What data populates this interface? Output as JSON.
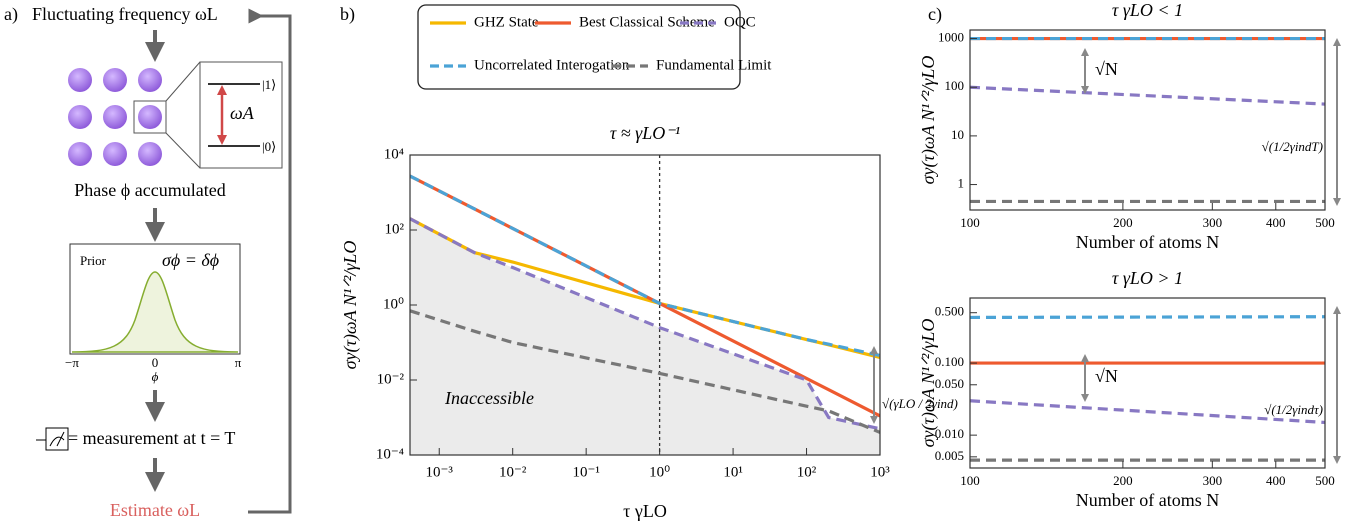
{
  "panel_a": {
    "label": "a)",
    "top_text": "Fluctuating frequency ωL",
    "level_1": "|1⟩",
    "level_0": "|0⟩",
    "transition": "ωA",
    "phase_text": "Phase ϕ accumulated",
    "prior_label": "Prior",
    "prior_width": "σϕ = δϕ",
    "axis_ticks": [
      "−π",
      "0",
      "π"
    ],
    "axis_label": "ϕ",
    "measurement_text": "= measurement at t = T",
    "estimate_text": "Estimate ωL"
  },
  "panel_labels": [
    "b)",
    "c)"
  ],
  "chart_data": [
    {
      "type": "line",
      "title": "τ ≈ γLO⁻¹",
      "x_label": "τ γLO",
      "y_label": "σy(τ)ωA N¹ᐟ²/γLO",
      "log_x": true,
      "log_y": true,
      "legend": "above",
      "xlim": [
        0.0004,
        1000
      ],
      "ylim": [
        0.0001,
        10000
      ],
      "xticks": [
        {
          "value": 0.001,
          "label": "10⁻³"
        },
        {
          "value": 0.01,
          "label": "10⁻²"
        },
        {
          "value": 0.1,
          "label": "10⁻¹"
        },
        {
          "value": 1,
          "label": "10⁰"
        },
        {
          "value": 10,
          "label": "10¹"
        },
        {
          "value": 100,
          "label": "10²"
        },
        {
          "value": 1000,
          "label": "10³"
        }
      ],
      "yticks": [
        {
          "value": 0.0001,
          "label": "10⁻⁴"
        },
        {
          "value": 0.01,
          "label": "10⁻²"
        },
        {
          "value": 1,
          "label": "10⁰"
        },
        {
          "value": 100,
          "label": "10²"
        },
        {
          "value": 10000,
          "label": "10⁴"
        }
      ],
      "x": [
        0.0004,
        0.003,
        0.01,
        1,
        100,
        200,
        1000
      ],
      "vline": 1,
      "shade_series": 2,
      "shade_color": "#ebebeb",
      "region_label": "Inaccessible",
      "bracket_label": "√(γLO / 2γind)",
      "series": [
        {
          "name": "GHZ State",
          "color": "#f5b800",
          "dash": "solid",
          "values": [
            200,
            25,
            14,
            1.1,
            0.12,
            0.087,
            0.04
          ]
        },
        {
          "name": "Best Classical Scheme",
          "color": "#ee5a2f",
          "dash": "solid",
          "values": [
            2750,
            367,
            110,
            1.1,
            0.011,
            0.0055,
            0.0011
          ]
        },
        {
          "name": "OQC",
          "color": "#8878c3",
          "dash": "dashed",
          "values": [
            200,
            25,
            10,
            0.25,
            0.01,
            0.001,
            0.0005
          ]
        },
        {
          "name": "Uncorrelated Interogation",
          "color": "#4ba3d6",
          "dash": "dashed",
          "values": [
            2750,
            367,
            110,
            1.1,
            0.12,
            0.09,
            0.045
          ]
        },
        {
          "name": "Fundamental Limit",
          "color": "#777777",
          "dash": "dashed",
          "values": [
            0.7,
            0.2,
            0.1,
            0.015,
            0.002,
            0.0015,
            0.0004
          ]
        }
      ]
    },
    {
      "type": "line",
      "title": "τ γLO < 1",
      "x_label": "Number of atoms N",
      "y_label": "σy(τ)ωA N¹ᐟ²/γLO",
      "log_x": true,
      "log_y": true,
      "xlim": [
        100,
        500
      ],
      "ylim": [
        0.3,
        1500
      ],
      "xticks": [
        100,
        200,
        300,
        400,
        500
      ],
      "yticks": [
        1,
        10,
        100,
        1000
      ],
      "x": [
        100,
        500
      ],
      "gap_label": "√N",
      "bracket_label": "√(1/2γindT)",
      "series": [
        {
          "color": "#ee5a2f",
          "dash": "solid",
          "values": [
            1000,
            1000
          ]
        },
        {
          "color": "#4ba3d6",
          "dash": "dashed",
          "values": [
            1000,
            1000
          ]
        },
        {
          "color": "#8878c3",
          "dash": "dashed",
          "values": [
            100,
            45
          ]
        },
        {
          "color": "#777777",
          "dash": "dashed",
          "values": [
            0.45,
            0.45
          ]
        }
      ]
    },
    {
      "type": "line",
      "title": "τ γLO > 1",
      "x_label": "Number of atoms N",
      "y_label": "σy(τ)ωA N¹ᐟ²/γLO",
      "log_x": true,
      "log_y": true,
      "xlim": [
        100,
        500
      ],
      "ylim": [
        0.0035,
        0.8
      ],
      "xticks": [
        100,
        200,
        300,
        400,
        500
      ],
      "yticks": [
        {
          "value": 0.005,
          "label": "0.005"
        },
        {
          "value": 0.01,
          "label": "0.010"
        },
        {
          "value": 0.05,
          "label": "0.050"
        },
        {
          "value": 0.1,
          "label": "0.100"
        },
        {
          "value": 0.5,
          "label": "0.500"
        }
      ],
      "x": [
        100,
        500
      ],
      "gap_label": "√N",
      "bracket_label": "√(1/2γindτ)",
      "series": [
        {
          "color": "#4ba3d6",
          "dash": "dashed",
          "values": [
            0.43,
            0.44
          ]
        },
        {
          "color": "#ee5a2f",
          "dash": "solid",
          "values": [
            0.1,
            0.1
          ]
        },
        {
          "color": "#8878c3",
          "dash": "dashed",
          "values": [
            0.03,
            0.015
          ]
        },
        {
          "color": "#777777",
          "dash": "dashed",
          "values": [
            0.0045,
            0.0045
          ]
        }
      ]
    }
  ]
}
